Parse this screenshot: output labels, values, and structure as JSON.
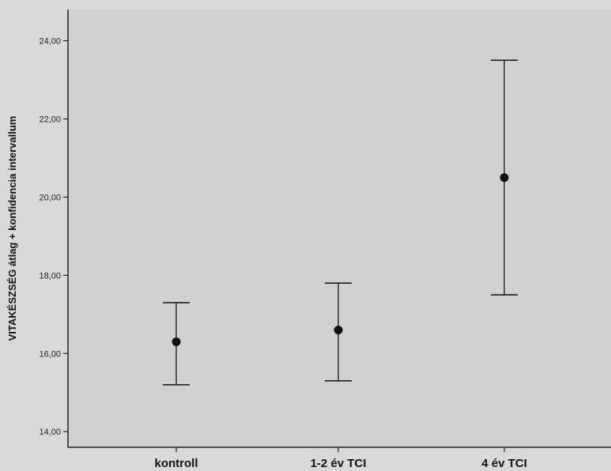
{
  "chart_data": {
    "type": "errorbar",
    "title": "",
    "xlabel": "",
    "ylabel": "VITAKÉSZSÉG átlag + konfidencia intervallum",
    "categories": [
      "kontroll",
      "1-2 év TCI",
      "4 év TCI"
    ],
    "means": [
      16.3,
      16.6,
      20.5
    ],
    "ci_lower": [
      15.2,
      15.3,
      17.5
    ],
    "ci_upper": [
      17.3,
      17.8,
      23.5
    ],
    "ylim": [
      13.6,
      24.8
    ],
    "yticks": [
      "14,00",
      "16,00",
      "18,00",
      "20,00",
      "22,00",
      "24,00"
    ],
    "ytick_values": [
      14,
      16,
      18,
      20,
      22,
      24
    ],
    "grid": false,
    "colors": {
      "plot_bg": "#cfd1d2",
      "marks": "#111111"
    }
  }
}
